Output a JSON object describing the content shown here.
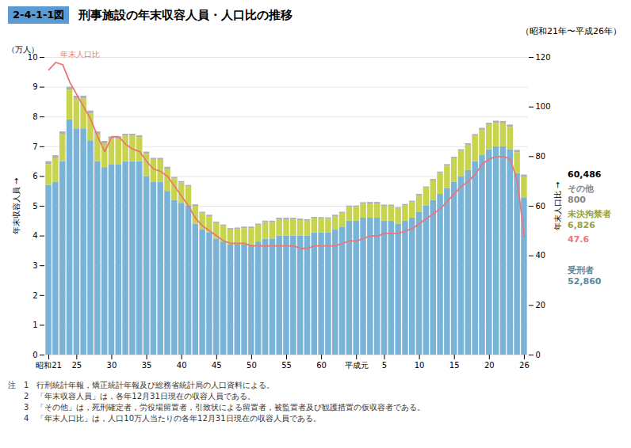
{
  "chart_data": {
    "type": "bar",
    "stacked": true,
    "title": "刑事施設の年末収容人員・人口比の推移",
    "figure_label": "2-4-1-1図",
    "subtitle": "（昭和21年〜平成26年）",
    "ylabel": "年末収容人員",
    "y2label": "年末人口比",
    "y_unit": "（万人）",
    "categories": [
      "昭和21",
      null,
      null,
      null,
      "25",
      null,
      null,
      null,
      null,
      "30",
      null,
      null,
      null,
      null,
      "35",
      null,
      null,
      null,
      null,
      "40",
      null,
      null,
      null,
      null,
      "45",
      null,
      null,
      null,
      null,
      "50",
      null,
      null,
      null,
      null,
      "55",
      null,
      null,
      null,
      null,
      "60",
      null,
      null,
      null,
      null,
      "平成元",
      null,
      null,
      null,
      "5",
      null,
      null,
      null,
      null,
      "10",
      null,
      null,
      null,
      null,
      "15",
      null,
      null,
      null,
      null,
      "20",
      null,
      null,
      null,
      null,
      "26"
    ],
    "series": [
      {
        "name": "受刑者",
        "color": "#7ab3d8",
        "values": [
          5.7,
          5.8,
          6.5,
          7.9,
          7.6,
          7.6,
          7.2,
          6.5,
          6.3,
          6.4,
          6.4,
          6.5,
          6.5,
          6.5,
          6.0,
          5.8,
          5.8,
          5.5,
          5.2,
          5.1,
          5.0,
          4.4,
          4.2,
          4.1,
          3.9,
          3.8,
          3.7,
          3.7,
          3.7,
          3.7,
          3.8,
          3.9,
          3.9,
          4.0,
          4.0,
          4.0,
          4.0,
          4.0,
          4.1,
          4.1,
          4.1,
          4.2,
          4.3,
          4.5,
          4.5,
          4.6,
          4.6,
          4.6,
          4.5,
          4.5,
          4.4,
          4.5,
          4.6,
          4.8,
          5.0,
          5.2,
          5.4,
          5.6,
          5.8,
          6.0,
          6.2,
          6.5,
          6.7,
          6.9,
          7.0,
          7.0,
          6.9,
          6.1,
          5.286
        ]
      },
      {
        "name": "未決拘禁者",
        "color": "#c8d44e",
        "values": [
          0.7,
          0.8,
          0.9,
          1.0,
          1.0,
          1.0,
          0.9,
          0.9,
          0.8,
          0.85,
          0.85,
          0.85,
          0.85,
          0.8,
          0.75,
          0.75,
          0.75,
          0.75,
          0.72,
          0.68,
          0.65,
          0.6,
          0.55,
          0.55,
          0.52,
          0.52,
          0.5,
          0.52,
          0.55,
          0.55,
          0.55,
          0.55,
          0.55,
          0.55,
          0.55,
          0.55,
          0.52,
          0.5,
          0.48,
          0.47,
          0.46,
          0.45,
          0.45,
          0.46,
          0.46,
          0.47,
          0.48,
          0.48,
          0.49,
          0.49,
          0.5,
          0.51,
          0.52,
          0.55,
          0.6,
          0.65,
          0.7,
          0.75,
          0.8,
          0.85,
          0.85,
          0.85,
          0.85,
          0.82,
          0.78,
          0.77,
          0.75,
          0.7,
          0.6826
        ]
      },
      {
        "name": "その他",
        "color": "#b0b0b0",
        "values": [
          0.1,
          0.1,
          0.1,
          0.1,
          0.1,
          0.1,
          0.1,
          0.1,
          0.08,
          0.08,
          0.08,
          0.07,
          0.07,
          0.07,
          0.07,
          0.06,
          0.06,
          0.06,
          0.05,
          0.05,
          0.05,
          0.05,
          0.05,
          0.05,
          0.05,
          0.05,
          0.05,
          0.05,
          0.05,
          0.05,
          0.05,
          0.05,
          0.05,
          0.05,
          0.05,
          0.05,
          0.05,
          0.05,
          0.05,
          0.05,
          0.05,
          0.05,
          0.05,
          0.05,
          0.05,
          0.05,
          0.05,
          0.05,
          0.05,
          0.05,
          0.05,
          0.05,
          0.05,
          0.05,
          0.05,
          0.05,
          0.05,
          0.05,
          0.05,
          0.05,
          0.05,
          0.06,
          0.07,
          0.07,
          0.08,
          0.08,
          0.08,
          0.08,
          0.08
        ]
      },
      {
        "name": "年末人口比",
        "type": "line",
        "axis": "y2",
        "color": "#e87878",
        "values": [
          115,
          118,
          117,
          110,
          105,
          100,
          95,
          88,
          82,
          88,
          88,
          85,
          83,
          82,
          78,
          75,
          74,
          72,
          68,
          64,
          60,
          55,
          52,
          50,
          48,
          46,
          45,
          45,
          45,
          44,
          44,
          44,
          44,
          44,
          44,
          44,
          43,
          43,
          44,
          44,
          44,
          44,
          45,
          46,
          46,
          47,
          48,
          48,
          49,
          49,
          49,
          50,
          51,
          53,
          55,
          57,
          59,
          62,
          65,
          68,
          70,
          73,
          77,
          79,
          80,
          80,
          79,
          70,
          47.6
        ]
      }
    ],
    "ylim": [
      0,
      10
    ],
    "yticks": [
      0,
      1,
      2,
      3,
      4,
      5,
      6,
      7,
      8,
      9,
      10
    ],
    "y2lim": [
      0,
      120
    ],
    "y2ticks": [
      0,
      20,
      40,
      60,
      80,
      100,
      120
    ],
    "grid": true,
    "annotations": [
      {
        "text": "60,486"
      },
      {
        "text": "800",
        "series": "その他"
      },
      {
        "text": "6,826",
        "series": "未決拘禁者"
      },
      {
        "text": "47.6",
        "series": "年末人口比"
      },
      {
        "text": "52,860",
        "series": "受刑者"
      }
    ],
    "notes": [
      "注　1　行刑統計年報，矯正統計年報及び総務省統計局の人口資料による。",
      "　　2　「年末収容人員」は，各年12月31日現在の収容人員である。",
      "　　3　「その他」は，死刑確定者，労役場留置者，引致状による留置者，被監置者及び観護措置の仮収容者である。",
      "　　4　「年末人口比」は，人口10万人当たりの各年12月31日現在の収容人員である。"
    ]
  }
}
